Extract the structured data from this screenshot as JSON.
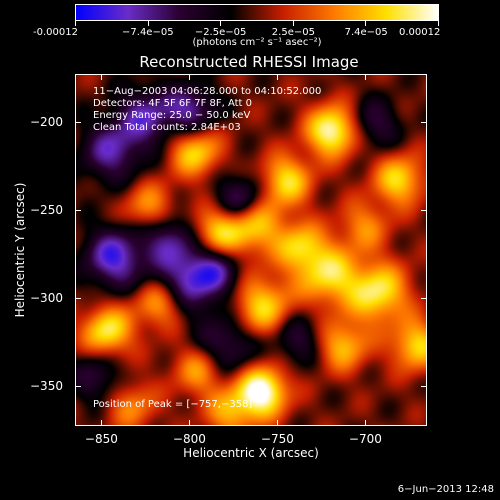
{
  "colorbar": {
    "tick_labels": [
      "-0.00012",
      "−7.4e−05",
      "−2.5e−05",
      "2.5e−05",
      "7.4e−05",
      "0.00012"
    ],
    "units": "(photons cm⁻² s⁻¹ asec⁻²)"
  },
  "chart_data": {
    "type": "heatmap",
    "title": "Reconstructed RHESSI Image",
    "xlabel": "Heliocentric X (arcsec)",
    "ylabel": "Heliocentric Y (arcsec)",
    "xlim": [
      -865,
      -665
    ],
    "ylim": [
      -373,
      -173
    ],
    "x_ticks": [
      -850,
      -800,
      -750,
      -700
    ],
    "x_tick_labels": [
      "−850",
      "−800",
      "−750",
      "−700"
    ],
    "y_ticks": [
      -350,
      -300,
      -250,
      -200
    ],
    "y_tick_labels": [
      "−350",
      "−300",
      "−250",
      "−200"
    ],
    "colorbar_range": [
      -0.00012,
      0.00012
    ],
    "colormap": [
      "#0000ff",
      "#6a2cc8",
      "#2a0030",
      "#000000",
      "#c81e00",
      "#ff7a00",
      "#ffe000",
      "#ffffff"
    ],
    "annotations": [
      "11−Aug−2003 04:06:28.000 to 04:10:52.000",
      "Detectors: 4F 5F 6F 7F 8F, Att 0",
      "Energy Range: 25.0 − 50.0 keV",
      "Clean    Total counts: 2.84E+03"
    ],
    "peak_label": "Position of Peak = [−757,−358]",
    "peak": [
      -757,
      -358
    ]
  },
  "footer": "6−Jun−2013 12:48"
}
